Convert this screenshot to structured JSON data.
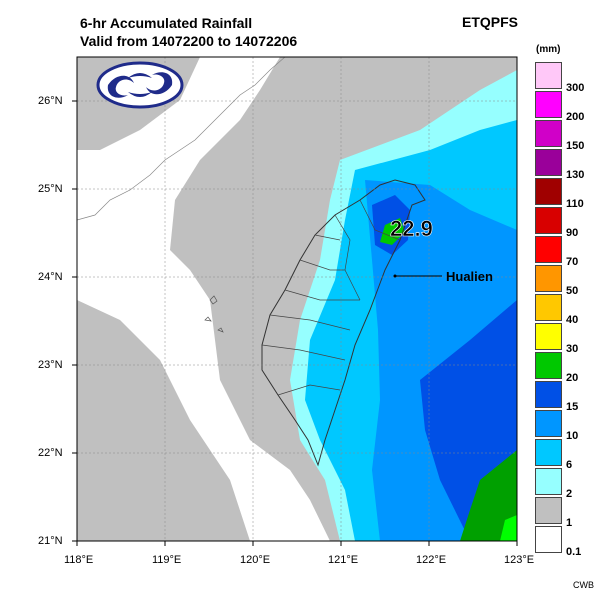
{
  "header": {
    "title_line1": "6-hr Accumulated Rainfall",
    "title_line2": "Valid from 14072200 to 14072206",
    "model": "ETQPFS"
  },
  "footer": {
    "credit": "CWB"
  },
  "legend": {
    "unit": "(mm)",
    "levels": [
      {
        "label": "300",
        "color": "#ffc8f8"
      },
      {
        "label": "200",
        "color": "#ff00ff"
      },
      {
        "label": "150",
        "color": "#d000c8"
      },
      {
        "label": "130",
        "color": "#9a009a"
      },
      {
        "label": "110",
        "color": "#a00000"
      },
      {
        "label": "90",
        "color": "#d80000"
      },
      {
        "label": "70",
        "color": "#ff0000"
      },
      {
        "label": "50",
        "color": "#ff9600"
      },
      {
        "label": "40",
        "color": "#ffc800"
      },
      {
        "label": "30",
        "color": "#ffff00"
      },
      {
        "label": "20",
        "color": "#00c800"
      },
      {
        "label": "15",
        "color": "#0050e6"
      },
      {
        "label": "10",
        "color": "#0096ff"
      },
      {
        "label": "6",
        "color": "#00c8ff"
      },
      {
        "label": "2",
        "color": "#96ffff"
      },
      {
        "label": "1",
        "color": "#c0c0c0"
      },
      {
        "label": "0.1",
        "color": "#ffffff"
      }
    ]
  },
  "axes": {
    "lat_labels": [
      "26°N",
      "25°N",
      "24°N",
      "23°N",
      "22°N",
      "21°N"
    ],
    "lon_labels": [
      "118°E",
      "119°E",
      "120°E",
      "121°E",
      "122°E",
      "123°E"
    ]
  },
  "map": {
    "max_value": "22.9",
    "station_label": "Hualien"
  }
}
